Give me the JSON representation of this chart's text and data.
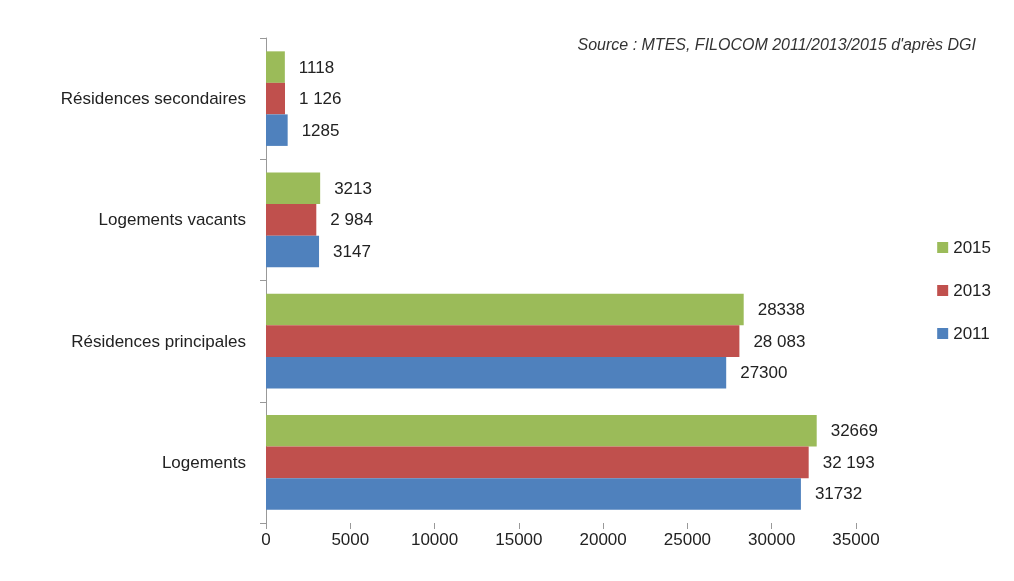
{
  "chart_data": {
    "type": "bar",
    "orientation": "horizontal",
    "categories": [
      "Résidences secondaires",
      "Logements vacants",
      "Résidences principales",
      "Logements"
    ],
    "series": [
      {
        "name": "2015",
        "color": "#9bbb59",
        "values": [
          1118,
          3213,
          28338,
          32669
        ],
        "value_labels": [
          "1118",
          "3213",
          "28338",
          "32669"
        ]
      },
      {
        "name": "2013",
        "color": "#c0504d",
        "values": [
          1126,
          2984,
          28083,
          32193
        ],
        "value_labels": [
          "1 126",
          "2 984",
          "28 083",
          "32 193"
        ]
      },
      {
        "name": "2011",
        "color": "#4f81bd",
        "values": [
          1285,
          3147,
          27300,
          31732
        ],
        "value_labels": [
          "1285",
          "3147",
          "27300",
          "31732"
        ]
      }
    ],
    "xlim": [
      0,
      35000
    ],
    "xticks": [
      0,
      5000,
      10000,
      15000,
      20000,
      25000,
      30000,
      35000
    ],
    "grid": false,
    "legend": "right",
    "annotations": [
      "Source : MTES, FILOCOM 2011/2013/2015 d'après DGI"
    ]
  }
}
